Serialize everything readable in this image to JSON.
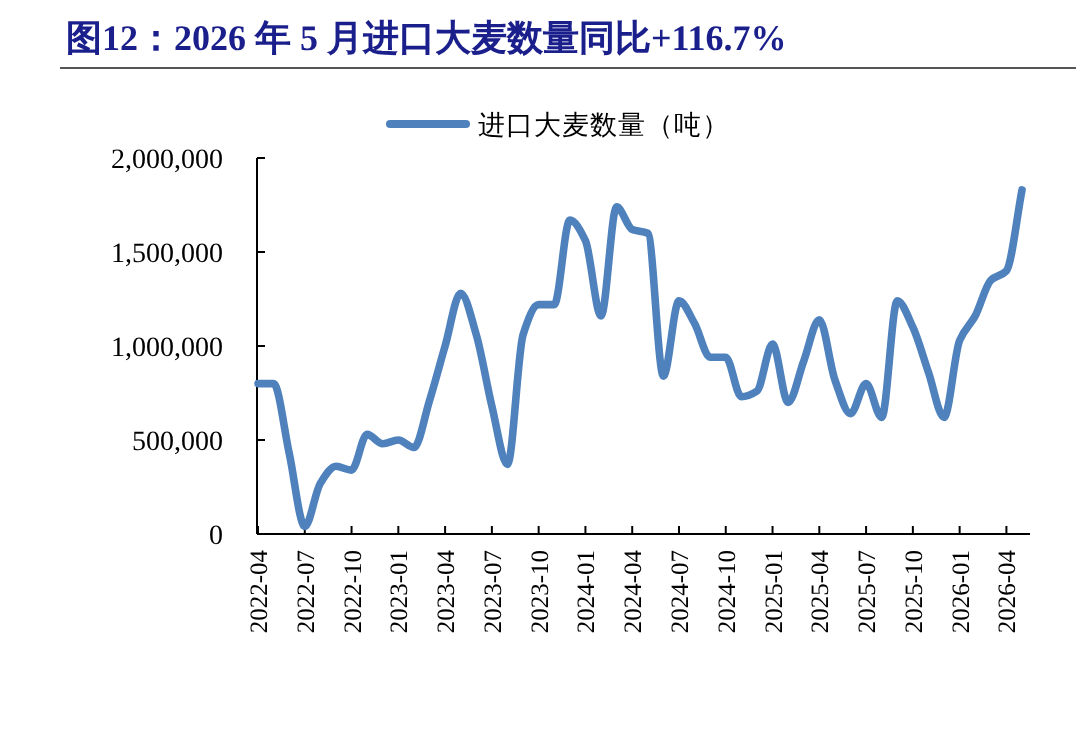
{
  "chart_data": {
    "type": "line",
    "title": "图12：2026 年 5 月进口大麦数量同比+116.7%",
    "categories": [
      "2022-04",
      null,
      null,
      "2022-07",
      null,
      null,
      "2022-10",
      null,
      null,
      "2023-01",
      null,
      null,
      "2023-04",
      null,
      null,
      "2023-07",
      null,
      null,
      "2023-10",
      null,
      null,
      "2024-01",
      null,
      null,
      "2024-04",
      null,
      null,
      "2024-07",
      null,
      null,
      "2024-10",
      null,
      null,
      "2025-01",
      null,
      null,
      "2025-04",
      null,
      null,
      "2025-07",
      null,
      null,
      "2025-10",
      null,
      null,
      "2026-01",
      null,
      null,
      "2026-04",
      null
    ],
    "series": [
      {
        "name": "进口大麦数量（吨）",
        "color": "#4f81bd",
        "values": [
          800000,
          800000,
          430000,
          40000,
          270000,
          360000,
          340000,
          530000,
          480000,
          500000,
          460000,
          710000,
          1000000,
          1280000,
          1060000,
          680000,
          370000,
          1060000,
          1220000,
          1220000,
          1670000,
          1560000,
          1160000,
          1740000,
          1620000,
          1600000,
          840000,
          1240000,
          1120000,
          940000,
          940000,
          730000,
          760000,
          1010000,
          700000,
          920000,
          1140000,
          820000,
          640000,
          800000,
          620000,
          1240000,
          1100000,
          860000,
          620000,
          1030000,
          1160000,
          1350000,
          1400000,
          1830000
        ]
      }
    ],
    "ylim": [
      0,
      2000000
    ],
    "yticks": [
      0,
      {
        "value": 500000,
        "label": "500,000"
      },
      {
        "value": 1000000,
        "label": "1,000,000"
      },
      {
        "value": 1500000,
        "label": "1,500,000"
      },
      {
        "value": 2000000,
        "label": "2,000,000"
      }
    ],
    "legend": "top"
  }
}
